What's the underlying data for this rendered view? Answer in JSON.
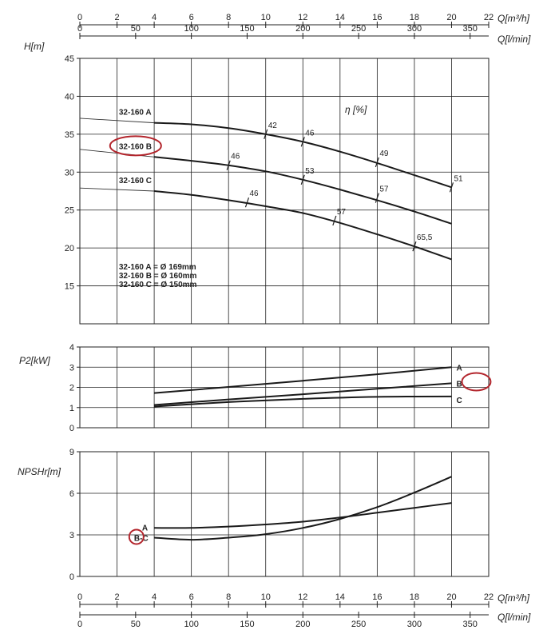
{
  "chart_data": {
    "type": "line",
    "x_axis": {
      "q_m3h": {
        "label": "Q[m³/h]",
        "ticks": [
          "0",
          "2",
          "4",
          "6",
          "8",
          "10",
          "12",
          "14",
          "16",
          "18",
          "20",
          "22"
        ],
        "range": [
          0,
          22
        ]
      },
      "q_lmin": {
        "label": "Q[l/min]",
        "ticks": [
          "0",
          "50",
          "100",
          "150",
          "200",
          "250",
          "300",
          "350"
        ]
      }
    },
    "head": {
      "ylabel": "H[m]",
      "ylim": [
        10,
        45
      ],
      "yticks": [
        "15",
        "20",
        "25",
        "30",
        "35",
        "40",
        "45"
      ],
      "efficiency_title": "η [%]",
      "series": [
        {
          "name": "32-160 A",
          "x": [
            0,
            4,
            6,
            8,
            10,
            12,
            14,
            16,
            18,
            20
          ],
          "y": [
            37.1,
            36.5,
            36.3,
            35.8,
            35.0,
            34.0,
            32.7,
            31.2,
            29.6,
            28.0
          ]
        },
        {
          "name": "32-160 B",
          "x": [
            0,
            4,
            6,
            8,
            10,
            12,
            14,
            16,
            18,
            20
          ],
          "y": [
            33.0,
            32.0,
            31.5,
            30.9,
            30.1,
            29.0,
            27.7,
            26.3,
            24.8,
            23.2
          ]
        },
        {
          "name": "32-160 C",
          "x": [
            0,
            4,
            6,
            8,
            10,
            12,
            14,
            16,
            18,
            20
          ],
          "y": [
            27.9,
            27.5,
            27.0,
            26.3,
            25.5,
            24.6,
            23.3,
            21.8,
            20.2,
            18.5
          ]
        }
      ],
      "efficiency_marks": [
        {
          "x": 10.0,
          "y": 35.0,
          "label": "42"
        },
        {
          "x": 12.0,
          "y": 34.0,
          "label": "46"
        },
        {
          "x": 16.0,
          "y": 31.3,
          "label": "49"
        },
        {
          "x": 20.0,
          "y": 28.0,
          "label": "51"
        },
        {
          "x": 8.0,
          "y": 30.9,
          "label": "46"
        },
        {
          "x": 12.0,
          "y": 29.0,
          "label": "53"
        },
        {
          "x": 16.0,
          "y": 26.6,
          "label": "57"
        },
        {
          "x": 9.0,
          "y": 26.0,
          "label": "46"
        },
        {
          "x": 13.7,
          "y": 23.6,
          "label": "57"
        },
        {
          "x": 18.0,
          "y": 20.2,
          "label": "65,5"
        }
      ],
      "legend": [
        "32-160 A = Ø 169mm",
        "32-160 B = Ø 160mm",
        "32-160 C = Ø 150mm"
      ]
    },
    "power": {
      "ylabel": "P2[kW]",
      "ylim": [
        0,
        4
      ],
      "yticks": [
        "0",
        "1",
        "2",
        "3",
        "4"
      ],
      "series": [
        {
          "name": "A",
          "x": [
            4,
            8,
            12,
            16,
            20
          ],
          "y": [
            1.72,
            2.02,
            2.33,
            2.65,
            3.0
          ]
        },
        {
          "name": "B",
          "x": [
            4,
            8,
            12,
            16,
            20
          ],
          "y": [
            1.13,
            1.4,
            1.66,
            1.93,
            2.2
          ]
        },
        {
          "name": "C",
          "x": [
            4,
            8,
            12,
            16,
            20
          ],
          "y": [
            1.05,
            1.27,
            1.43,
            1.53,
            1.55
          ]
        }
      ]
    },
    "npsh": {
      "ylabel": "NPSHr[m]",
      "ylim": [
        0,
        9
      ],
      "yticks": [
        "0",
        "3",
        "6",
        "9"
      ],
      "series": [
        {
          "name": "A",
          "x": [
            4,
            6,
            8,
            10,
            12,
            14,
            16,
            18,
            20
          ],
          "y": [
            3.5,
            3.5,
            3.6,
            3.75,
            3.95,
            4.25,
            4.6,
            4.95,
            5.3
          ]
        },
        {
          "name": "B-C",
          "x": [
            4,
            6,
            8,
            10,
            12,
            14,
            16,
            18,
            20
          ],
          "y": [
            2.8,
            2.65,
            2.8,
            3.05,
            3.5,
            4.15,
            5.0,
            6.05,
            7.2
          ]
        }
      ],
      "label_a": "A",
      "label_bc": "B-C"
    }
  }
}
